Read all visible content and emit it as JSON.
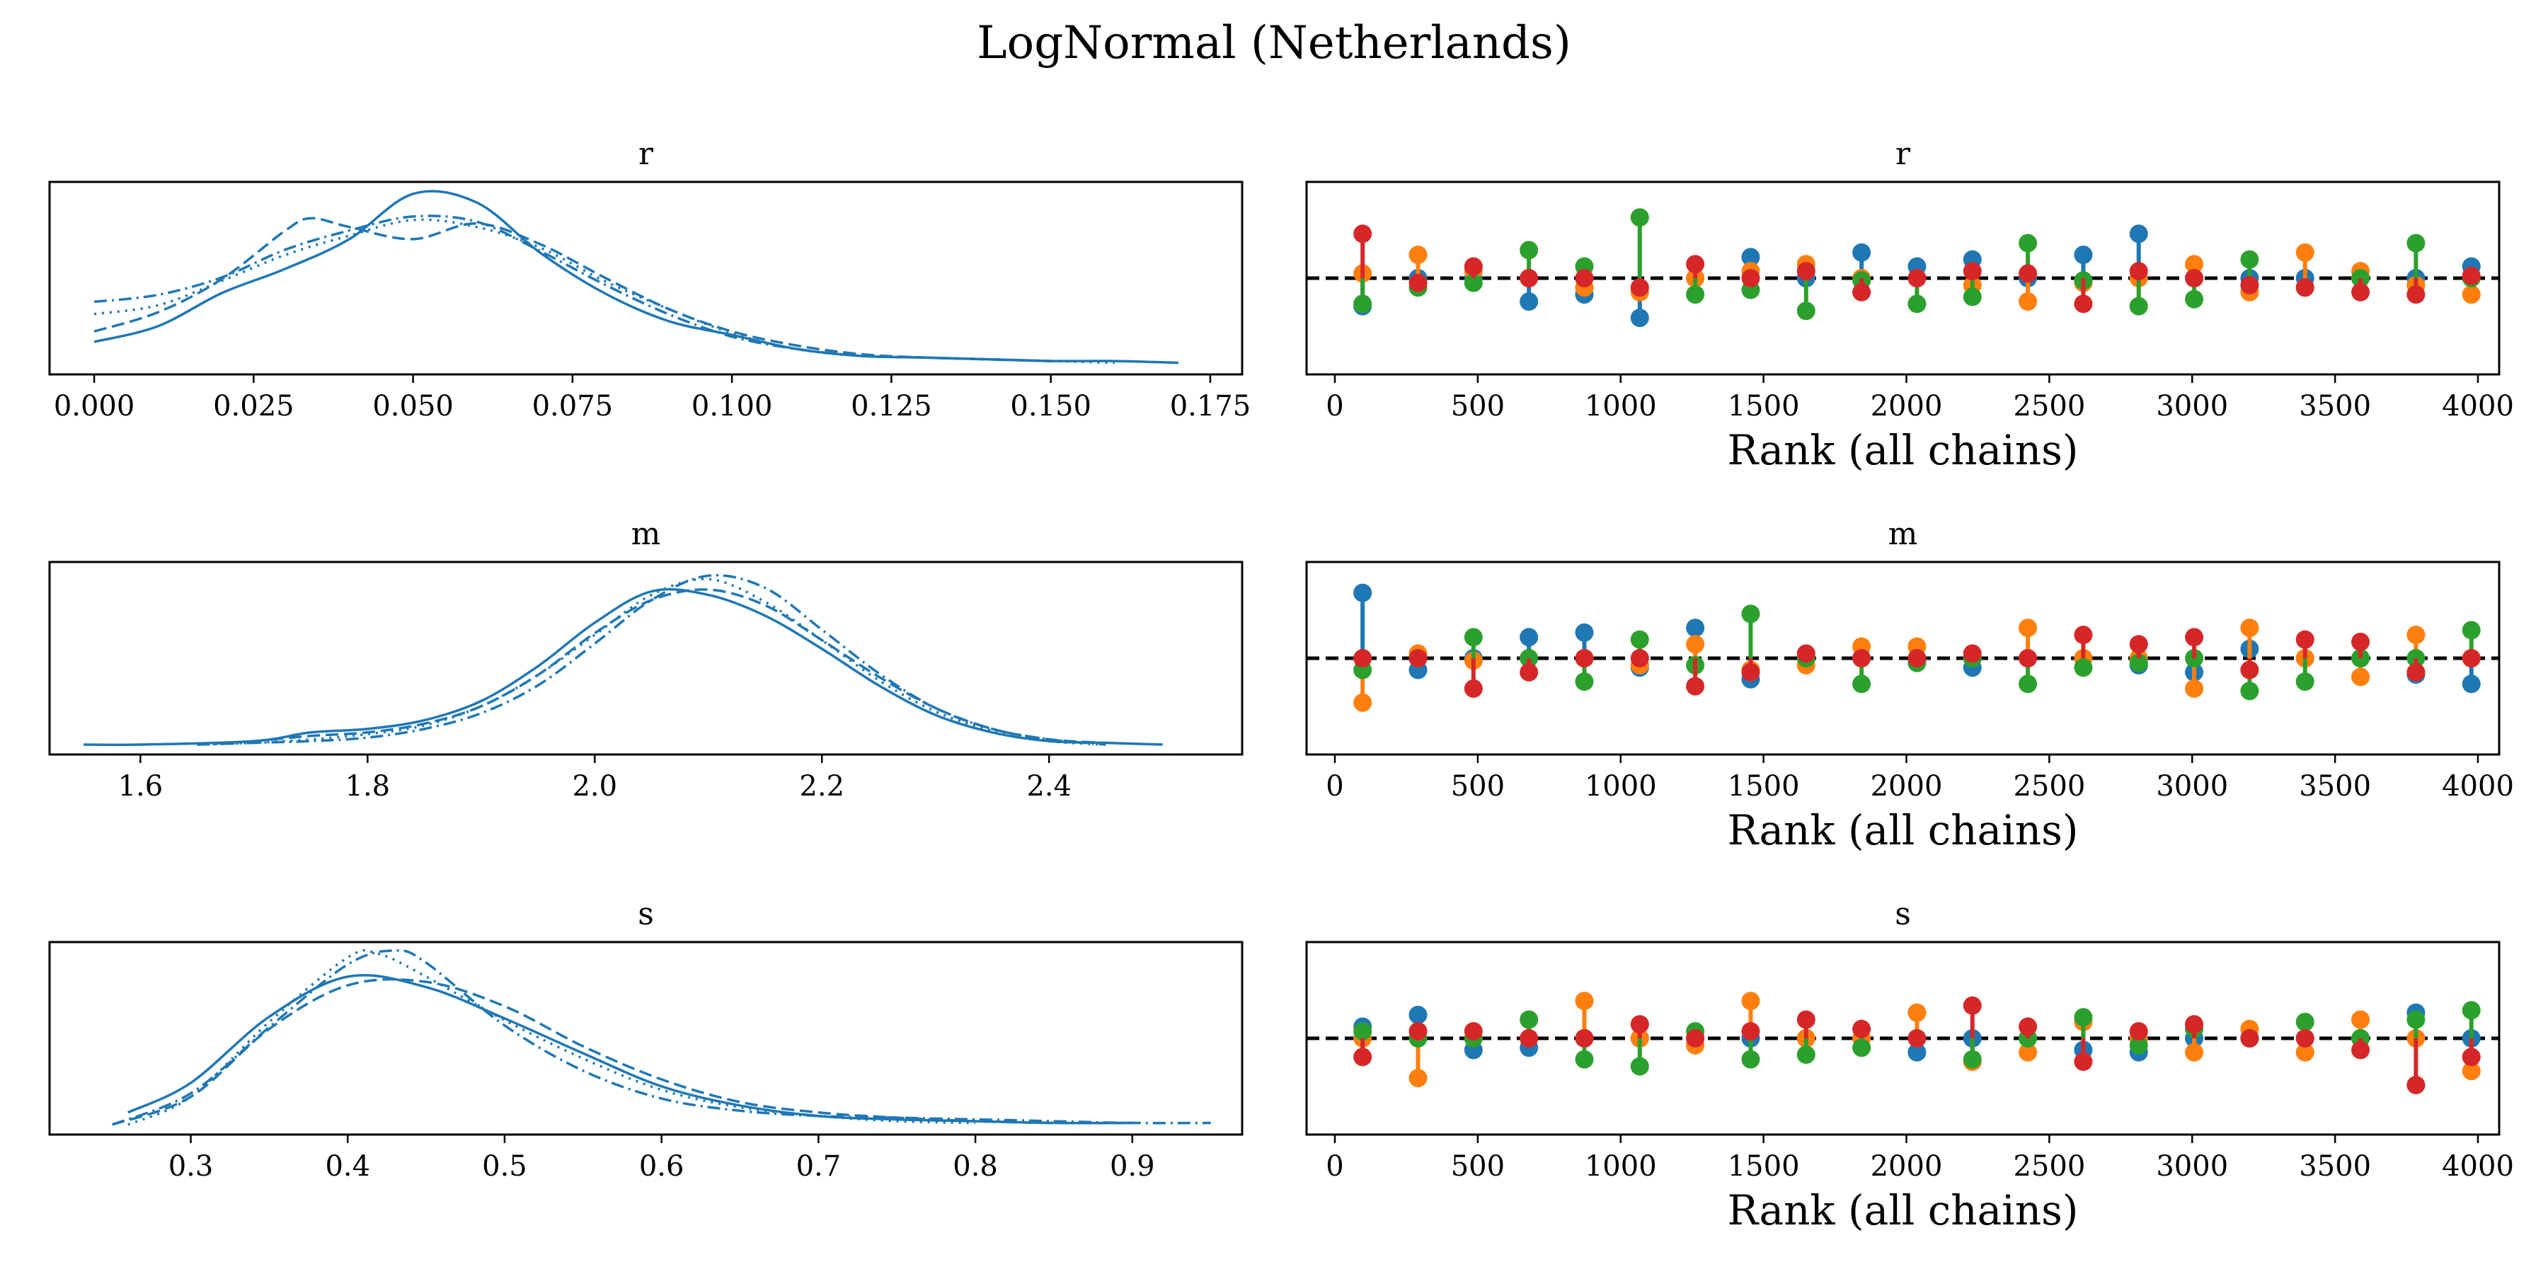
{
  "title": "LogNormal (Netherlands)",
  "colors": {
    "kde": "#1f77b4",
    "chains": [
      "#1f77b4",
      "#ff7f0e",
      "#2ca02c",
      "#d62728"
    ],
    "reference": "#000000"
  },
  "rank_xlabel": "Rank (all chains)",
  "rank_xticks": [
    "0",
    "500",
    "1000",
    "1500",
    "2000",
    "2500",
    "3000",
    "3500",
    "4000"
  ],
  "rank_bins": [
    97,
    291,
    485,
    679,
    873,
    1067,
    1261,
    1455,
    1649,
    1843,
    2037,
    2231,
    2425,
    2619,
    2813,
    3007,
    3201,
    3395,
    3589,
    3783,
    3977
  ],
  "chart_data": [
    {
      "type": "line",
      "panel": "kde",
      "title": "r",
      "xlim": [
        -0.007,
        0.18
      ],
      "xticks": [
        "0.000",
        "0.025",
        "0.050",
        "0.075",
        "0.100",
        "0.125",
        "0.150",
        "0.175"
      ],
      "line_styles": [
        "solid",
        "dashed",
        "dotted",
        "dashdot"
      ],
      "series": [
        {
          "x": [
            0.0,
            0.01,
            0.02,
            0.03,
            0.04,
            0.05,
            0.06,
            0.07,
            0.08,
            0.09,
            0.1,
            0.11,
            0.12,
            0.13,
            0.14,
            0.15,
            0.16,
            0.17
          ],
          "y": [
            0.13,
            0.22,
            0.41,
            0.55,
            0.72,
            0.98,
            0.93,
            0.64,
            0.41,
            0.25,
            0.17,
            0.09,
            0.05,
            0.04,
            0.03,
            0.02,
            0.02,
            0.01
          ]
        },
        {
          "x": [
            0.0,
            0.01,
            0.02,
            0.03,
            0.034,
            0.04,
            0.05,
            0.06,
            0.07,
            0.08,
            0.09,
            0.1,
            0.11,
            0.12,
            0.13,
            0.14,
            0.15
          ],
          "y": [
            0.19,
            0.3,
            0.49,
            0.77,
            0.84,
            0.79,
            0.72,
            0.81,
            0.69,
            0.5,
            0.32,
            0.19,
            0.11,
            0.06,
            0.04,
            0.03,
            0.02
          ]
        },
        {
          "x": [
            0.0,
            0.01,
            0.02,
            0.03,
            0.04,
            0.05,
            0.06,
            0.07,
            0.08,
            0.09,
            0.1,
            0.11,
            0.12,
            0.13,
            0.14,
            0.15,
            0.16
          ],
          "y": [
            0.29,
            0.34,
            0.48,
            0.63,
            0.74,
            0.83,
            0.79,
            0.67,
            0.48,
            0.32,
            0.18,
            0.09,
            0.05,
            0.04,
            0.03,
            0.02,
            0.01
          ]
        },
        {
          "x": [
            0.0,
            0.01,
            0.02,
            0.03,
            0.04,
            0.05,
            0.06,
            0.07,
            0.08,
            0.09,
            0.1,
            0.11,
            0.12,
            0.13,
            0.14,
            0.15
          ],
          "y": [
            0.36,
            0.4,
            0.5,
            0.66,
            0.77,
            0.85,
            0.82,
            0.65,
            0.46,
            0.29,
            0.16,
            0.09,
            0.05,
            0.04,
            0.03,
            0.02
          ]
        }
      ]
    },
    {
      "type": "scatter",
      "panel": "rank",
      "title": "r",
      "chains": [
        [
          -0.12,
          0.0,
          0.0,
          -0.1,
          -0.07,
          -0.17,
          0.0,
          0.09,
          0.0,
          0.11,
          0.05,
          0.08,
          0.0,
          0.1,
          0.19,
          0.0,
          0.0,
          0.0,
          0.0,
          0.0,
          0.05
        ],
        [
          0.02,
          0.1,
          0.03,
          0.0,
          -0.04,
          -0.06,
          0.0,
          0.03,
          0.06,
          0.0,
          0.0,
          -0.03,
          -0.1,
          -0.02,
          0.0,
          0.06,
          -0.06,
          0.11,
          0.03,
          -0.03,
          -0.07
        ],
        [
          -0.11,
          -0.04,
          -0.02,
          0.12,
          0.05,
          0.26,
          -0.07,
          -0.05,
          -0.14,
          -0.01,
          -0.11,
          -0.08,
          0.15,
          -0.01,
          -0.12,
          -0.09,
          0.08,
          -0.04,
          0.0,
          0.15,
          0.0
        ],
        [
          0.19,
          -0.02,
          0.05,
          0.0,
          0.0,
          -0.04,
          0.06,
          0.0,
          0.03,
          -0.06,
          0.0,
          0.03,
          0.02,
          -0.11,
          0.03,
          0.0,
          -0.03,
          -0.04,
          -0.06,
          -0.07,
          0.01
        ]
      ]
    },
    {
      "type": "line",
      "panel": "kde",
      "title": "m",
      "xlim": [
        1.52,
        2.57
      ],
      "xticks": [
        "1.6",
        "1.8",
        "2.0",
        "2.2",
        "2.4"
      ],
      "line_styles": [
        "solid",
        "dashed",
        "dotted",
        "dashdot"
      ],
      "series": [
        {
          "x": [
            1.55,
            1.6,
            1.7,
            1.75,
            1.8,
            1.85,
            1.9,
            1.95,
            2.0,
            2.05,
            2.1,
            2.15,
            2.2,
            2.25,
            2.3,
            2.35,
            2.4,
            2.45,
            2.5
          ],
          "y": [
            0.0,
            0.0,
            0.02,
            0.07,
            0.09,
            0.14,
            0.25,
            0.45,
            0.7,
            0.88,
            0.86,
            0.74,
            0.55,
            0.34,
            0.17,
            0.07,
            0.02,
            0.01,
            0.0
          ]
        },
        {
          "x": [
            1.65,
            1.7,
            1.75,
            1.8,
            1.85,
            1.9,
            1.95,
            2.0,
            2.05,
            2.1,
            2.15,
            2.2,
            2.25,
            2.3,
            2.35,
            2.4,
            2.45
          ],
          "y": [
            0.0,
            0.02,
            0.05,
            0.07,
            0.12,
            0.22,
            0.4,
            0.64,
            0.83,
            0.89,
            0.8,
            0.6,
            0.39,
            0.21,
            0.09,
            0.03,
            0.01
          ]
        },
        {
          "x": [
            1.65,
            1.7,
            1.75,
            1.8,
            1.85,
            1.9,
            1.95,
            2.0,
            2.05,
            2.1,
            2.15,
            2.2,
            2.25,
            2.3,
            2.35,
            2.4,
            2.45
          ],
          "y": [
            0.0,
            0.01,
            0.03,
            0.06,
            0.11,
            0.22,
            0.4,
            0.63,
            0.86,
            0.95,
            0.82,
            0.6,
            0.37,
            0.19,
            0.08,
            0.02,
            0.0
          ]
        },
        {
          "x": [
            1.65,
            1.7,
            1.75,
            1.8,
            1.85,
            1.9,
            1.95,
            2.0,
            2.05,
            2.1,
            2.15,
            2.2,
            2.25,
            2.3,
            2.35,
            2.4,
            2.45
          ],
          "y": [
            0.0,
            0.01,
            0.02,
            0.04,
            0.09,
            0.18,
            0.34,
            0.58,
            0.83,
            0.97,
            0.9,
            0.66,
            0.41,
            0.21,
            0.09,
            0.03,
            0.0
          ]
        }
      ]
    },
    {
      "type": "scatter",
      "panel": "rank",
      "title": "m",
      "chains": [
        [
          0.28,
          -0.05,
          0.0,
          0.09,
          0.11,
          -0.04,
          0.13,
          -0.09,
          0.0,
          0.0,
          -0.02,
          -0.04,
          0.0,
          0.0,
          -0.03,
          -0.06,
          0.04,
          0.0,
          0.0,
          -0.07,
          -0.11
        ],
        [
          -0.19,
          0.02,
          -0.01,
          0.0,
          0.0,
          -0.03,
          0.06,
          -0.05,
          -0.03,
          0.05,
          0.05,
          0.0,
          0.13,
          0.0,
          0.0,
          -0.13,
          0.13,
          0.0,
          -0.08,
          0.1,
          0.0
        ],
        [
          -0.05,
          0.0,
          0.09,
          0.0,
          -0.1,
          0.08,
          -0.03,
          0.19,
          0.0,
          -0.11,
          -0.02,
          0.0,
          -0.11,
          -0.04,
          -0.02,
          0.0,
          -0.14,
          -0.1,
          0.0,
          0.0,
          0.12
        ],
        [
          0.0,
          0.0,
          -0.13,
          -0.06,
          0.0,
          0.0,
          -0.12,
          -0.06,
          0.02,
          0.0,
          0.0,
          0.02,
          0.0,
          0.1,
          0.06,
          0.09,
          -0.05,
          0.08,
          0.07,
          -0.06,
          0.0
        ]
      ]
    },
    {
      "type": "line",
      "panel": "kde",
      "title": "s",
      "xlim": [
        0.21,
        0.97
      ],
      "xticks": [
        "0.3",
        "0.4",
        "0.5",
        "0.6",
        "0.7",
        "0.8",
        "0.9"
      ],
      "line_styles": [
        "solid",
        "dashed",
        "dotted",
        "dashdot"
      ],
      "series": [
        {
          "x": [
            0.26,
            0.3,
            0.35,
            0.4,
            0.45,
            0.5,
            0.55,
            0.6,
            0.65,
            0.7,
            0.75,
            0.8,
            0.85,
            0.9
          ],
          "y": [
            0.07,
            0.24,
            0.62,
            0.85,
            0.79,
            0.61,
            0.41,
            0.22,
            0.11,
            0.05,
            0.03,
            0.02,
            0.01,
            0.01
          ]
        },
        {
          "x": [
            0.25,
            0.3,
            0.35,
            0.4,
            0.45,
            0.5,
            0.55,
            0.6,
            0.65,
            0.7,
            0.75,
            0.8,
            0.85,
            0.9
          ],
          "y": [
            0.0,
            0.16,
            0.55,
            0.8,
            0.82,
            0.68,
            0.45,
            0.26,
            0.13,
            0.07,
            0.04,
            0.02,
            0.01,
            0.01
          ]
        },
        {
          "x": [
            0.26,
            0.3,
            0.35,
            0.4,
            0.42,
            0.45,
            0.5,
            0.55,
            0.6,
            0.65,
            0.7,
            0.75,
            0.8
          ],
          "y": [
            0.0,
            0.16,
            0.59,
            0.96,
            0.98,
            0.85,
            0.6,
            0.38,
            0.2,
            0.1,
            0.05,
            0.02,
            0.01
          ]
        },
        {
          "x": [
            0.25,
            0.3,
            0.35,
            0.4,
            0.43,
            0.45,
            0.5,
            0.55,
            0.6,
            0.65,
            0.7,
            0.75,
            0.8,
            0.85,
            0.9,
            0.95
          ],
          "y": [
            0.0,
            0.18,
            0.56,
            0.92,
            1.0,
            0.93,
            0.57,
            0.31,
            0.15,
            0.08,
            0.05,
            0.04,
            0.03,
            0.02,
            0.01,
            0.01
          ]
        }
      ]
    },
    {
      "type": "scatter",
      "panel": "rank",
      "title": "s",
      "chains": [
        [
          0.05,
          0.1,
          -0.05,
          -0.04,
          0.0,
          0.0,
          0.0,
          0.0,
          0.0,
          -0.04,
          -0.06,
          0.0,
          0.0,
          -0.05,
          -0.06,
          0.0,
          0.0,
          0.0,
          0.0,
          0.11,
          0.0
        ],
        [
          0.0,
          -0.17,
          0.0,
          0.0,
          0.16,
          0.0,
          -0.03,
          0.16,
          0.0,
          0.0,
          0.11,
          -0.1,
          -0.06,
          0.07,
          0.0,
          -0.06,
          0.04,
          -0.06,
          0.08,
          0.0,
          -0.14
        ],
        [
          0.03,
          0.0,
          0.0,
          0.08,
          -0.09,
          -0.12,
          0.03,
          -0.09,
          -0.07,
          -0.04,
          0.0,
          -0.09,
          0.0,
          0.09,
          -0.03,
          0.04,
          0.0,
          0.07,
          0.0,
          0.08,
          0.12
        ],
        [
          -0.08,
          0.03,
          0.03,
          0.0,
          0.0,
          0.06,
          0.0,
          0.03,
          0.08,
          0.04,
          0.0,
          0.14,
          0.05,
          -0.1,
          0.03,
          0.06,
          0.0,
          0.0,
          -0.05,
          -0.2,
          -0.08
        ]
      ]
    }
  ]
}
